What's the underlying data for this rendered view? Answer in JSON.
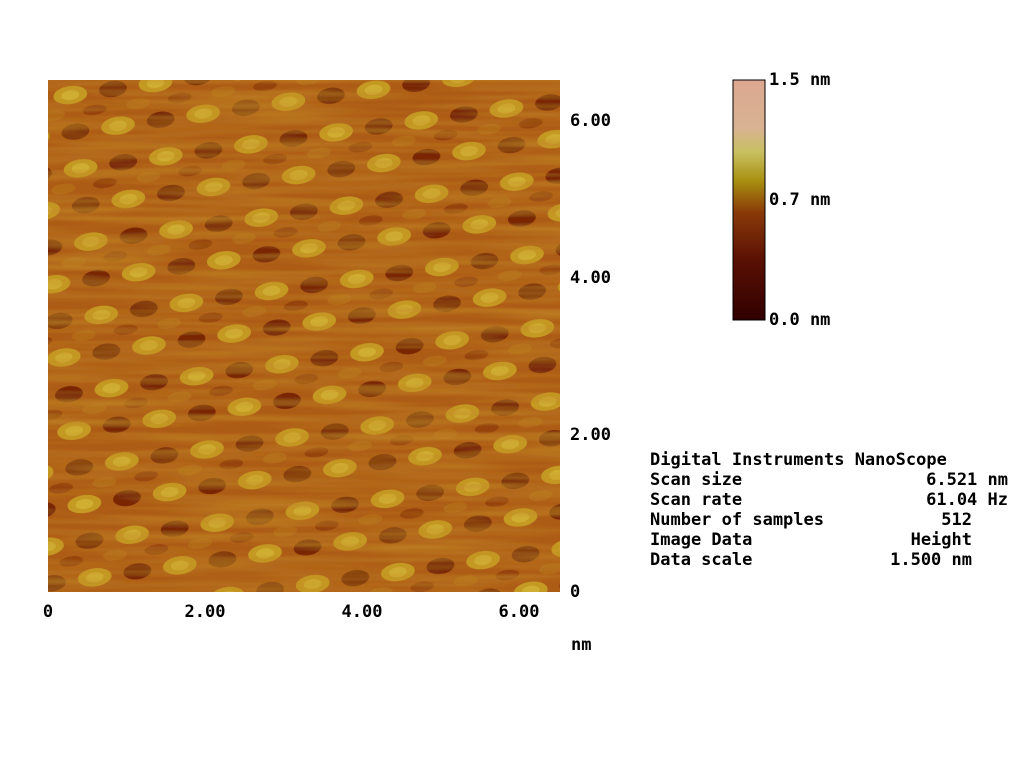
{
  "image": {
    "x_ticks": [
      "0",
      "2.00",
      "4.00",
      "6.00"
    ],
    "y_ticks": [
      "0",
      "2.00",
      "4.00",
      "6.00"
    ],
    "x_unit": "nm"
  },
  "color_bar": {
    "labels": [
      "1.5 nm",
      "0.7 nm",
      "0.0 nm"
    ]
  },
  "info": {
    "title": "Digital Instruments NanoScope",
    "rows": [
      [
        "Scan size",
        "6.521 nm"
      ],
      [
        "Scan rate",
        "61.04 Hz"
      ],
      [
        "Number of samples",
        "512"
      ],
      [
        "Image Data",
        "Height"
      ],
      [
        "Data scale",
        "1.500 nm"
      ]
    ]
  }
}
